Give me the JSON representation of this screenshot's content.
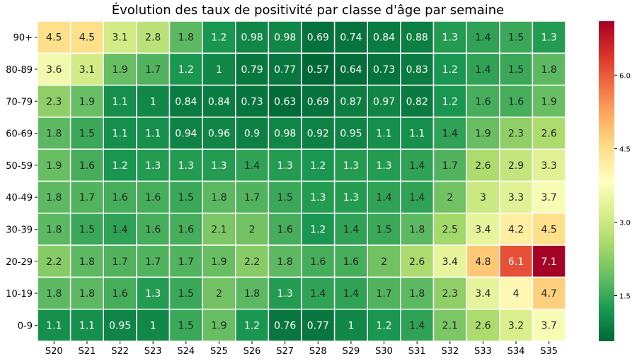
{
  "chart_data": {
    "type": "heatmap",
    "title": "Évolution des taux de positivité par classe d'âge par semaine",
    "x_labels": [
      "S20",
      "S21",
      "S22",
      "S23",
      "S24",
      "S25",
      "S26",
      "S27",
      "S28",
      "S29",
      "S30",
      "S31",
      "S32",
      "S33",
      "S34",
      "S35"
    ],
    "y_labels": [
      "90+",
      "80-89",
      "70-79",
      "60-69",
      "50-59",
      "40-49",
      "30-39",
      "20-29",
      "10-19",
      "0-9"
    ],
    "values": [
      [
        4.5,
        4.5,
        3.1,
        2.8,
        1.8,
        1.2,
        0.98,
        0.98,
        0.69,
        0.74,
        0.84,
        0.88,
        1.3,
        1.4,
        1.5,
        1.3
      ],
      [
        3.6,
        3.1,
        1.9,
        1.7,
        1.2,
        1,
        0.79,
        0.77,
        0.57,
        0.64,
        0.73,
        0.83,
        1.2,
        1.4,
        1.5,
        1.8
      ],
      [
        2.3,
        1.9,
        1.1,
        1,
        0.84,
        0.84,
        0.73,
        0.63,
        0.69,
        0.87,
        0.97,
        0.82,
        1.2,
        1.6,
        1.6,
        1.9
      ],
      [
        1.8,
        1.5,
        1.1,
        1.1,
        0.94,
        0.96,
        0.9,
        0.98,
        0.92,
        0.95,
        1.1,
        1.1,
        1.4,
        1.9,
        2.3,
        2.6
      ],
      [
        1.9,
        1.6,
        1.2,
        1.3,
        1.3,
        1.3,
        1.4,
        1.3,
        1.2,
        1.3,
        1.3,
        1.4,
        1.7,
        2.6,
        2.9,
        3.3
      ],
      [
        1.8,
        1.7,
        1.6,
        1.6,
        1.5,
        1.8,
        1.7,
        1.5,
        1.3,
        1.3,
        1.4,
        1.4,
        2,
        3,
        3.3,
        3.7
      ],
      [
        1.8,
        1.5,
        1.4,
        1.6,
        1.6,
        2.1,
        2,
        1.6,
        1.2,
        1.4,
        1.5,
        1.8,
        2.5,
        3.4,
        4.2,
        4.5
      ],
      [
        2.2,
        1.8,
        1.7,
        1.7,
        1.7,
        1.9,
        2.2,
        1.8,
        1.6,
        1.6,
        2,
        2.6,
        3.4,
        4.8,
        6.1,
        7.1
      ],
      [
        1.8,
        1.8,
        1.6,
        1.3,
        1.5,
        2,
        1.8,
        1.3,
        1.4,
        1.4,
        1.7,
        1.8,
        2.3,
        3.4,
        4,
        4.7
      ],
      [
        1.1,
        1.1,
        0.95,
        1,
        1.5,
        1.9,
        1.2,
        0.76,
        0.77,
        1,
        1.2,
        1.4,
        2.1,
        2.6,
        3.2,
        3.7
      ]
    ],
    "colormap": "RdYlGn_r",
    "vmin": 0.57,
    "vmax": 7.1,
    "colorbar_ticks": [
      "1.5",
      "3.0",
      "4.5",
      "6.0"
    ],
    "colorbar_tick_values": [
      1.5,
      3.0,
      4.5,
      6.0
    ],
    "annotations": true,
    "gridlines": "white cell borders"
  }
}
